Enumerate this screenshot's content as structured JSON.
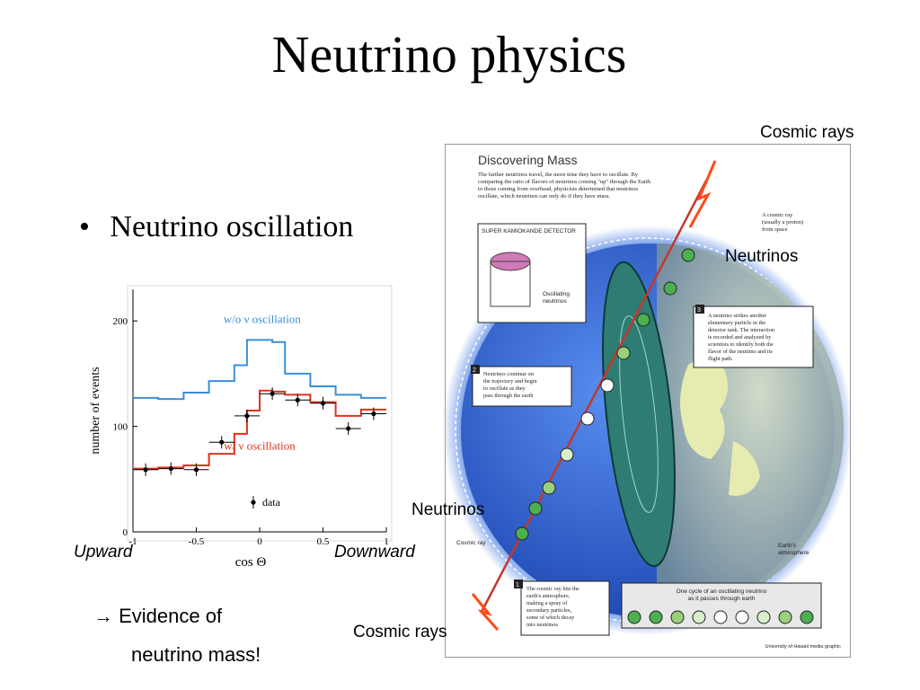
{
  "slide": {
    "title": "Neutrino physics",
    "bullet_marker": "•",
    "bullet": "Neutrino oscillation",
    "evidence_arrow": "→",
    "evidence_line1": "Evidence of",
    "evidence_line2": "neutrino mass!",
    "label_upward": "Upward",
    "label_downward": "Downward",
    "label_cosmic_top": "Cosmic rays",
    "label_neutrinos_top": "Neutrinos",
    "label_neutrinos_bottom": "Neutrinos",
    "label_cosmic_bottom": "Cosmic rays"
  },
  "chart_data": {
    "type": "line",
    "step": true,
    "xlabel": "cos Θ",
    "ylabel": "number of events",
    "xlim": [
      -1,
      1
    ],
    "ylim": [
      0,
      230
    ],
    "x_ticks": [
      "-1",
      "-0.5",
      "0",
      "0.5",
      "1"
    ],
    "y_ticks": [
      "0",
      "100",
      "200"
    ],
    "bin_edges": [
      -1,
      -0.8,
      -0.6,
      -0.4,
      -0.2,
      -0.1,
      0,
      0.1,
      0.2,
      0.4,
      0.6,
      0.8,
      1
    ],
    "series": [
      {
        "name": "w/o ν oscillation",
        "color": "#3a8fd6",
        "values": [
          127,
          126,
          132,
          143,
          158,
          182,
          182,
          180,
          150,
          138,
          130,
          127
        ]
      },
      {
        "name": "w/ ν oscillation",
        "color": "#e0321e",
        "values": [
          60,
          61,
          63,
          74,
          93,
          115,
          134,
          133,
          130,
          123,
          110,
          116
        ]
      }
    ],
    "data_points": {
      "name": "data",
      "x": [
        -0.9,
        -0.7,
        -0.5,
        -0.3,
        -0.1,
        0.1,
        0.3,
        0.5,
        0.7,
        0.9
      ],
      "y": [
        59,
        60,
        59,
        85,
        110,
        131,
        125,
        122,
        98,
        112
      ]
    }
  },
  "poster": {
    "title": "Discovering Mass",
    "intro": [
      "The farther neutrinos travel, the more time they have to oscillate. By",
      "comparing the ratio of flavors of neutrinos coming \"up\" through the Earth",
      "to those coming from overhead, physicists determined that neutrinos",
      "oscillate, which neutrinos can only do if they have mass."
    ],
    "detector": "SUPER KAMIOKANDE DETECTOR",
    "oscillating": [
      "Oscillating",
      "neutrinos"
    ],
    "cosmic_ray_note": [
      "A cosmic ray",
      "(usually a proton)",
      "from space"
    ],
    "step3": [
      "A neutrino strikes another",
      "elementary particle in the",
      "detector tank. The interaction",
      "is recorded and analyzed by",
      "scientists to identify both the",
      "flavor of the neutrino and its",
      "flight path."
    ],
    "step2": [
      "Neutrinos continue on",
      "the trajectory and begin",
      "to oscillate as they",
      "pass through the earth"
    ],
    "step1": [
      "The cosmic ray hits the",
      "earth's atmosphere,",
      "making a spray of",
      "secondary particles,",
      "some of which decay",
      "into neutrinos"
    ],
    "cosmic_ray": "Cosmic ray",
    "atmosphere": [
      "Earth's",
      "atmosphere"
    ],
    "cycle": [
      "One cycle of an oscillating neutrino",
      "as it passes through earth"
    ],
    "step_nums": [
      "1",
      "2",
      "3"
    ],
    "credit": "University of Hawaii media graphic"
  }
}
